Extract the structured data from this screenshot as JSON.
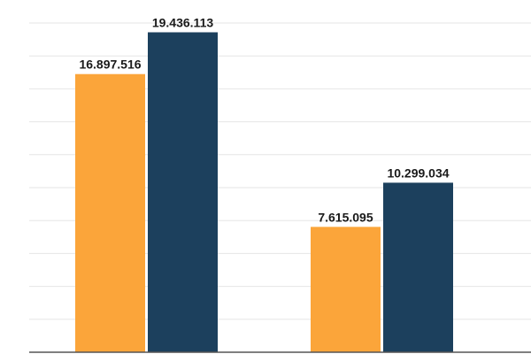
{
  "chart_data": {
    "type": "bar",
    "categories": [
      "",
      ""
    ],
    "series": [
      {
        "values": [
          16897516,
          7615095
        ],
        "labels": [
          "16.897.516",
          "7.615.095"
        ],
        "color": "#FBA53A"
      },
      {
        "values": [
          19436113,
          10299034
        ],
        "labels": [
          "19.436.113",
          "10.299.034"
        ],
        "color": "#1C405D"
      }
    ],
    "title": "",
    "xlabel": "",
    "ylabel": "",
    "ylim": [
      0,
      20000000
    ],
    "ytick_step": 2000000,
    "grid": true,
    "gridline_color": "#E6E6E6",
    "axis_color": "#555555"
  }
}
